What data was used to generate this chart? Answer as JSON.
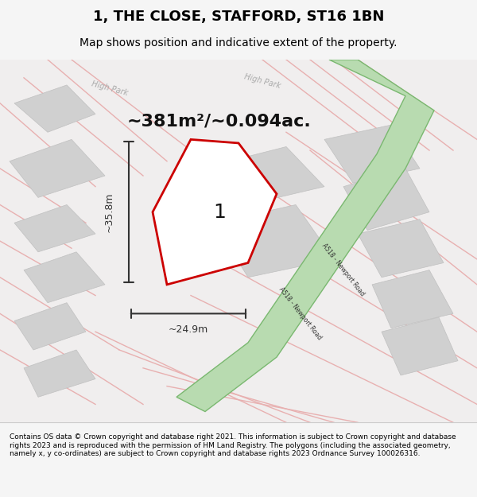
{
  "title_line1": "1, THE CLOSE, STAFFORD, ST16 1BN",
  "title_line2": "Map shows position and indicative extent of the property.",
  "area_text": "~381m²/~0.094ac.",
  "dim_width": "~24.9m",
  "dim_height": "~35.8m",
  "plot_label": "1",
  "footer_text": "Contains OS data © Crown copyright and database right 2021. This information is subject to Crown copyright and database rights 2023 and is reproduced with the permission of HM Land Registry. The polygons (including the associated geometry, namely x, y co-ordinates) are subject to Crown copyright and database rights 2023 Ordnance Survey 100026316.",
  "bg_color": "#f0eeee",
  "map_bg": "#f0eeee",
  "road_green_color": "#a8d5a2",
  "road_green_border": "#6aaa64",
  "property_outline_color": "#cc0000",
  "property_fill": "#ffffff",
  "block_fill": "#d8d8d8",
  "road_line_color": "#e8b0b0",
  "dim_line_color": "#333333",
  "street_label_color": "#444444",
  "title_color": "#000000",
  "footer_color": "#000000"
}
